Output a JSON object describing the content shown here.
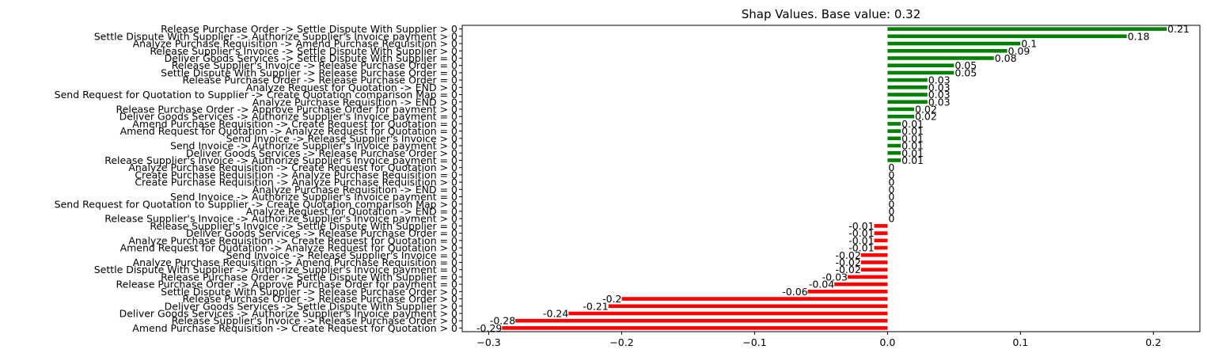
{
  "chart_data": {
    "type": "bar",
    "orientation": "horizontal",
    "title": "Shap Values. Base value: 0.32",
    "xlabel": "",
    "ylabel": "",
    "xlim": [
      -0.32,
      0.235
    ],
    "xticks": [
      {
        "value": -0.3,
        "label": "−0.3"
      },
      {
        "value": -0.2,
        "label": "−0.2"
      },
      {
        "value": -0.1,
        "label": "−0.1"
      },
      {
        "value": 0.0,
        "label": "0.0"
      },
      {
        "value": 0.1,
        "label": "0.1"
      },
      {
        "value": 0.2,
        "label": "0.2"
      }
    ],
    "grid": false,
    "legend": "none",
    "colors": {
      "positive": "#008000",
      "negative": "#ff0000"
    },
    "bars": [
      {
        "label": "Release Purchase Order -> Settle Dispute With Supplier > 0",
        "value": 0.21,
        "display": "0.21"
      },
      {
        "label": "Settle Dispute With Supplier -> Authorize Supplier's Invoice payment > 0",
        "value": 0.18,
        "display": "0.18"
      },
      {
        "label": "Analyze Purchase Requisition -> Amend Purchase Requisition > 0",
        "value": 0.1,
        "display": "0.1"
      },
      {
        "label": "Release Supplier's Invoice -> Settle Dispute With Supplier > 0",
        "value": 0.09,
        "display": "0.09"
      },
      {
        "label": "Deliver Goods Services -> Settle Dispute With Supplier = 0",
        "value": 0.08,
        "display": "0.08"
      },
      {
        "label": "Release Supplier's Invoice -> Release Purchase Order = 0",
        "value": 0.05,
        "display": "0.05"
      },
      {
        "label": "Settle Dispute With Supplier -> Release Purchase Order = 0",
        "value": 0.05,
        "display": "0.05"
      },
      {
        "label": "Release Purchase Order -> Release Purchase Order = 0",
        "value": 0.03,
        "display": "0.03"
      },
      {
        "label": "Analyze Request for Quotation -> END > 0",
        "value": 0.03,
        "display": "0.03"
      },
      {
        "label": "Send Request for Quotation to Supplier -> Create Quotation comparison Map = 0",
        "value": 0.03,
        "display": "0.03"
      },
      {
        "label": "Analyze Purchase Requisition -> END > 0",
        "value": 0.03,
        "display": "0.03"
      },
      {
        "label": "Release Purchase Order -> Approve Purchase Order for payment > 0",
        "value": 0.02,
        "display": "0.02"
      },
      {
        "label": "Deliver Goods Services -> Authorize Supplier's Invoice payment = 0",
        "value": 0.02,
        "display": "0.02"
      },
      {
        "label": "Amend Purchase Requisition -> Create Request for Quotation = 0",
        "value": 0.01,
        "display": "0.01"
      },
      {
        "label": "Amend Request for Quotation -> Analyze Request for Quotation = 0",
        "value": 0.01,
        "display": "0.01"
      },
      {
        "label": "Send Invoice -> Release Supplier's Invoice > 0",
        "value": 0.01,
        "display": "0.01"
      },
      {
        "label": "Send Invoice -> Authorize Supplier's Invoice payment > 0",
        "value": 0.01,
        "display": "0.01"
      },
      {
        "label": "Deliver Goods Services -> Release Purchase Order > 0",
        "value": 0.01,
        "display": "0.01"
      },
      {
        "label": "Release Supplier's Invoice -> Authorize Supplier's Invoice payment = 0",
        "value": 0.01,
        "display": "0.01"
      },
      {
        "label": "Analyze Purchase Requisition -> Create Request for Quotation > 0",
        "value": 0,
        "display": "0"
      },
      {
        "label": "Create Purchase Requisition -> Analyze Purchase Requisition = 0",
        "value": 0,
        "display": "0"
      },
      {
        "label": "Create Purchase Requisition -> Analyze Purchase Requisition > 0",
        "value": 0,
        "display": "0"
      },
      {
        "label": "Analyze Purchase Requisition -> END = 0",
        "value": 0,
        "display": "0"
      },
      {
        "label": "Send Invoice -> Authorize Supplier's Invoice payment = 0",
        "value": 0,
        "display": "0"
      },
      {
        "label": "Send Request for Quotation to Supplier -> Create Quotation comparison Map > 0",
        "value": 0,
        "display": "0"
      },
      {
        "label": "Analyze Request for Quotation -> END = 0",
        "value": 0,
        "display": "0"
      },
      {
        "label": "Release Supplier's Invoice -> Authorize Supplier's Invoice payment > 0",
        "value": 0,
        "display": "0"
      },
      {
        "label": "Release Supplier's Invoice -> Settle Dispute With Supplier = 0",
        "value": -0.01,
        "display": "-0.01"
      },
      {
        "label": "Deliver Goods Services -> Release Purchase Order = 0",
        "value": -0.01,
        "display": "-0.01"
      },
      {
        "label": "Analyze Purchase Requisition -> Create Request for Quotation = 0",
        "value": -0.01,
        "display": "-0.01"
      },
      {
        "label": "Amend Request for Quotation -> Analyze Request for Quotation > 0",
        "value": -0.01,
        "display": "-0.01"
      },
      {
        "label": "Send Invoice -> Release Supplier's Invoice = 0",
        "value": -0.02,
        "display": "-0.02"
      },
      {
        "label": "Analyze Purchase Requisition -> Amend Purchase Requisition = 0",
        "value": -0.02,
        "display": "-0.02"
      },
      {
        "label": "Settle Dispute With Supplier -> Authorize Supplier's Invoice payment = 0",
        "value": -0.02,
        "display": "-0.02"
      },
      {
        "label": "Release Purchase Order -> Settle Dispute With Supplier = 0",
        "value": -0.03,
        "display": "-0.03"
      },
      {
        "label": "Release Purchase Order -> Approve Purchase Order for payment = 0",
        "value": -0.04,
        "display": "-0.04"
      },
      {
        "label": "Settle Dispute With Supplier -> Release Purchase Order > 0",
        "value": -0.06,
        "display": "-0.06"
      },
      {
        "label": "Release Purchase Order -> Release Purchase Order > 0",
        "value": -0.2,
        "display": "-0.2"
      },
      {
        "label": "Deliver Goods Services -> Settle Dispute With Supplier > 0",
        "value": -0.21,
        "display": "-0.21"
      },
      {
        "label": "Deliver Goods Services -> Authorize Supplier's Invoice payment > 0",
        "value": -0.24,
        "display": "-0.24"
      },
      {
        "label": "Release Supplier's Invoice -> Release Purchase Order > 0",
        "value": -0.28,
        "display": "-0.28"
      },
      {
        "label": "Amend Purchase Requisition -> Create Request for Quotation > 0",
        "value": -0.29,
        "display": "-0.29"
      }
    ]
  }
}
